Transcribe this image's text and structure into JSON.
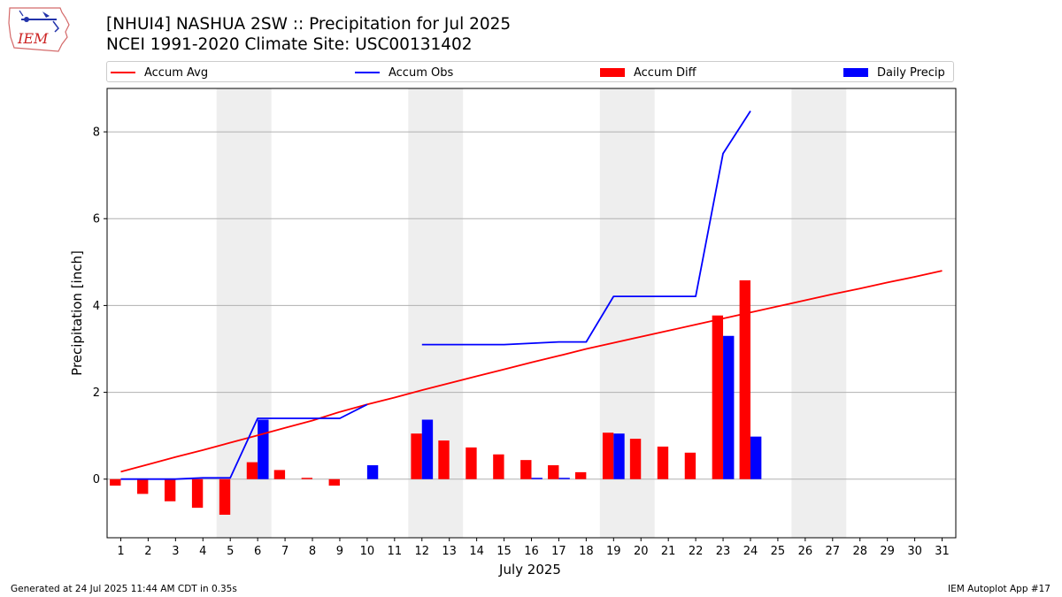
{
  "header": {
    "title_line1": "[NHUI4] NASHUA 2SW :: Precipitation for Jul 2025",
    "title_line2": "NCEI 1991-2020 Climate Site: USC00131402"
  },
  "logo": {
    "text": "IEM"
  },
  "footer": {
    "generated": "Generated at 24 Jul 2025 11:44 AM CDT in 0.35s",
    "app": "IEM Autoplot App #17"
  },
  "chart_data": {
    "type": "bar",
    "title": "[NHUI4] NASHUA 2SW :: Precipitation for Jul 2025",
    "subtitle": "NCEI 1991-2020 Climate Site: USC00131402",
    "xlabel": "July 2025",
    "ylabel": "Precipitation [inch]",
    "xlim": [
      0.5,
      31.5
    ],
    "ylim": [
      -1.35,
      9.0
    ],
    "yticks": [
      0,
      2,
      4,
      6,
      8
    ],
    "grid": "y",
    "legend_position": "top",
    "weekend_spans": [
      [
        4.5,
        6.5
      ],
      [
        11.5,
        13.5
      ],
      [
        18.5,
        20.5
      ],
      [
        25.5,
        27.5
      ]
    ],
    "categories": [
      1,
      2,
      3,
      4,
      5,
      6,
      7,
      8,
      9,
      10,
      11,
      12,
      13,
      14,
      15,
      16,
      17,
      18,
      19,
      20,
      21,
      22,
      23,
      24,
      25,
      26,
      27,
      28,
      29,
      30,
      31
    ],
    "series": [
      {
        "name": "Accum Avg",
        "kind": "line",
        "color": "#ff0000",
        "x": [
          1,
          2,
          3,
          4,
          5,
          6,
          7,
          8,
          9,
          10,
          11,
          12,
          13,
          14,
          15,
          16,
          17,
          18,
          19,
          20,
          21,
          22,
          23,
          24,
          25,
          26,
          27,
          28,
          29,
          30,
          31
        ],
        "values": [
          0.17,
          0.34,
          0.51,
          0.67,
          0.84,
          1.01,
          1.18,
          1.35,
          1.55,
          1.72,
          1.88,
          2.05,
          2.21,
          2.37,
          2.53,
          2.69,
          2.84,
          3.0,
          3.14,
          3.28,
          3.42,
          3.56,
          3.7,
          3.84,
          3.98,
          4.12,
          4.26,
          4.39,
          4.53,
          4.66,
          4.8
        ]
      },
      {
        "name": "Accum Obs",
        "kind": "line",
        "color": "#0000ff",
        "x": [
          1,
          2,
          3,
          4,
          5,
          6,
          7,
          8,
          9,
          10,
          null,
          12,
          13,
          14,
          15,
          16,
          17,
          18,
          19,
          20,
          21,
          22,
          23,
          24
        ],
        "values": [
          0.0,
          0.0,
          0.0,
          0.03,
          0.03,
          1.4,
          1.4,
          1.4,
          1.4,
          1.72,
          null,
          3.1,
          3.1,
          3.1,
          3.1,
          3.13,
          3.16,
          3.16,
          4.21,
          4.21,
          4.21,
          4.21,
          7.5,
          8.48
        ]
      },
      {
        "name": "Accum Diff",
        "kind": "bar",
        "color": "#ff0000",
        "offset": -0.2,
        "x": [
          1,
          2,
          3,
          4,
          5,
          6,
          7,
          8,
          9,
          12,
          13,
          14,
          15,
          16,
          17,
          18,
          19,
          20,
          21,
          22,
          23,
          24
        ],
        "values": [
          -0.15,
          -0.34,
          -0.51,
          -0.66,
          -0.82,
          0.39,
          0.21,
          0.03,
          -0.15,
          1.05,
          0.89,
          0.73,
          0.57,
          0.44,
          0.32,
          0.16,
          1.07,
          0.93,
          0.75,
          0.61,
          3.77,
          4.58
        ]
      },
      {
        "name": "Daily Precip",
        "kind": "bar",
        "color": "#0000ff",
        "offset": 0.2,
        "x": [
          6,
          10,
          12,
          16,
          17,
          19,
          23,
          24
        ],
        "values": [
          1.37,
          0.32,
          1.37,
          0.03,
          0.03,
          1.05,
          3.3,
          0.98
        ]
      }
    ]
  }
}
